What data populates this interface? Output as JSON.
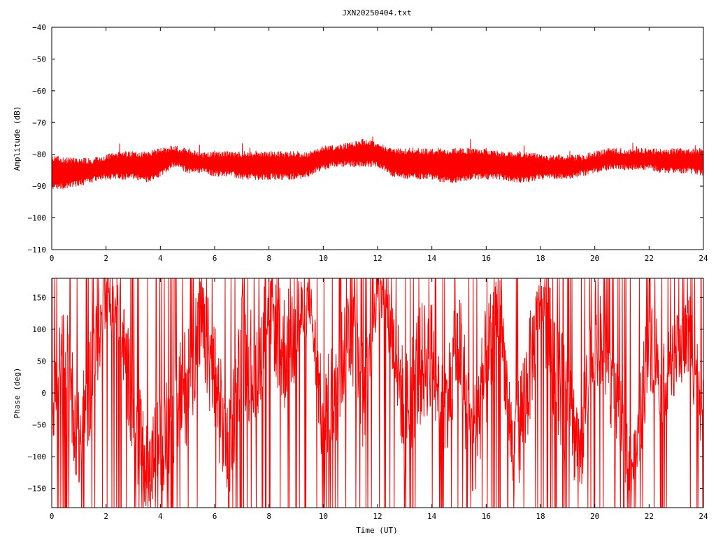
{
  "title": "JXN20250404.txt",
  "colors": {
    "series": "#ff0000",
    "axes": "#000000",
    "background": "#ffffff"
  },
  "chart_data": [
    {
      "type": "line",
      "ylabel": "Amplitude (dB)",
      "xlabel": "",
      "xlim": [
        0,
        24
      ],
      "ylim": [
        -110,
        -40
      ],
      "xticks": [
        0,
        2,
        4,
        6,
        8,
        10,
        12,
        14,
        16,
        18,
        20,
        22,
        24
      ],
      "yticks": [
        -110,
        -100,
        -90,
        -80,
        -70,
        -60,
        -50,
        -40
      ],
      "grid": false,
      "series": [
        {
          "color": "#ff0000",
          "x": [
            0,
            0.5,
            1,
            1.5,
            2,
            2.5,
            3,
            3.5,
            4,
            4.5,
            5,
            5.5,
            6,
            6.5,
            7,
            7.5,
            8,
            8.5,
            9,
            9.5,
            10,
            10.5,
            11,
            11.5,
            12,
            12.5,
            13,
            13.5,
            14,
            14.5,
            15,
            15.5,
            16,
            16.5,
            17,
            17.5,
            18,
            18.5,
            19,
            19.5,
            20,
            20.5,
            21,
            21.5,
            22,
            22.5,
            23,
            23.5,
            24
          ],
          "upper": [
            -80,
            -81,
            -81,
            -81,
            -80,
            -79,
            -79,
            -79,
            -78,
            -77,
            -78,
            -79,
            -79,
            -79,
            -79,
            -79,
            -79,
            -79,
            -79,
            -79,
            -77,
            -77,
            -76,
            -75,
            -76,
            -78,
            -78,
            -78,
            -78,
            -78,
            -78,
            -78,
            -78,
            -79,
            -79,
            -79,
            -80,
            -80,
            -80,
            -80,
            -79,
            -78,
            -78,
            -78,
            -78,
            -78,
            -78,
            -78,
            -78
          ],
          "lower": [
            -91,
            -91,
            -90,
            -89,
            -88,
            -88,
            -88,
            -89,
            -87,
            -84,
            -86,
            -86,
            -87,
            -87,
            -88,
            -88,
            -88,
            -88,
            -88,
            -87,
            -85,
            -84,
            -84,
            -84,
            -84,
            -87,
            -88,
            -88,
            -88,
            -89,
            -89,
            -88,
            -88,
            -88,
            -89,
            -89,
            -88,
            -88,
            -88,
            -87,
            -86,
            -85,
            -85,
            -85,
            -85,
            -86,
            -86,
            -86,
            -87
          ]
        }
      ]
    },
    {
      "type": "line",
      "ylabel": "Phase (deg)",
      "xlabel": "Time (UT)",
      "xlim": [
        0,
        24
      ],
      "ylim": [
        -180,
        180
      ],
      "xticks": [
        0,
        2,
        4,
        6,
        8,
        10,
        12,
        14,
        16,
        18,
        20,
        22,
        24
      ],
      "yticks": [
        -150,
        -100,
        -50,
        0,
        50,
        100,
        150
      ],
      "grid": false,
      "series": [
        {
          "color": "#ff0000",
          "x": [
            0,
            0.5,
            1,
            1.5,
            2,
            2.5,
            3,
            3.5,
            4,
            4.5,
            5,
            5.5,
            6,
            6.5,
            7,
            7.5,
            8,
            8.5,
            9,
            9.5,
            10,
            10.5,
            11,
            11.5,
            12,
            12.5,
            13,
            13.5,
            14,
            14.5,
            15,
            15.5,
            16,
            16.5,
            17,
            17.5,
            18,
            18.5,
            19,
            19.5,
            20,
            20.5,
            21,
            21.5,
            22,
            22.5,
            23,
            23.5,
            24
          ],
          "center": [
            -20,
            60,
            -80,
            40,
            150,
            120,
            -30,
            -120,
            -80,
            -40,
            20,
            110,
            20,
            -100,
            70,
            30,
            140,
            60,
            100,
            150,
            -60,
            20,
            110,
            -20,
            160,
            100,
            -30,
            40,
            60,
            -20,
            80,
            -90,
            40,
            130,
            -100,
            10,
            140,
            60,
            -40,
            -80,
            90,
            40,
            -60,
            -120,
            100,
            20,
            60,
            90,
            -40
          ],
          "spread": [
            70,
            90,
            80,
            90,
            40,
            60,
            90,
            70,
            80,
            90,
            100,
            80,
            100,
            80,
            90,
            100,
            60,
            100,
            90,
            40,
            90,
            100,
            80,
            90,
            30,
            70,
            90,
            100,
            90,
            80,
            90,
            90,
            100,
            60,
            80,
            100,
            50,
            100,
            90,
            80,
            90,
            80,
            70,
            60,
            90,
            70,
            60,
            80,
            60
          ],
          "wrap_fraction": 0.2
        }
      ]
    }
  ]
}
